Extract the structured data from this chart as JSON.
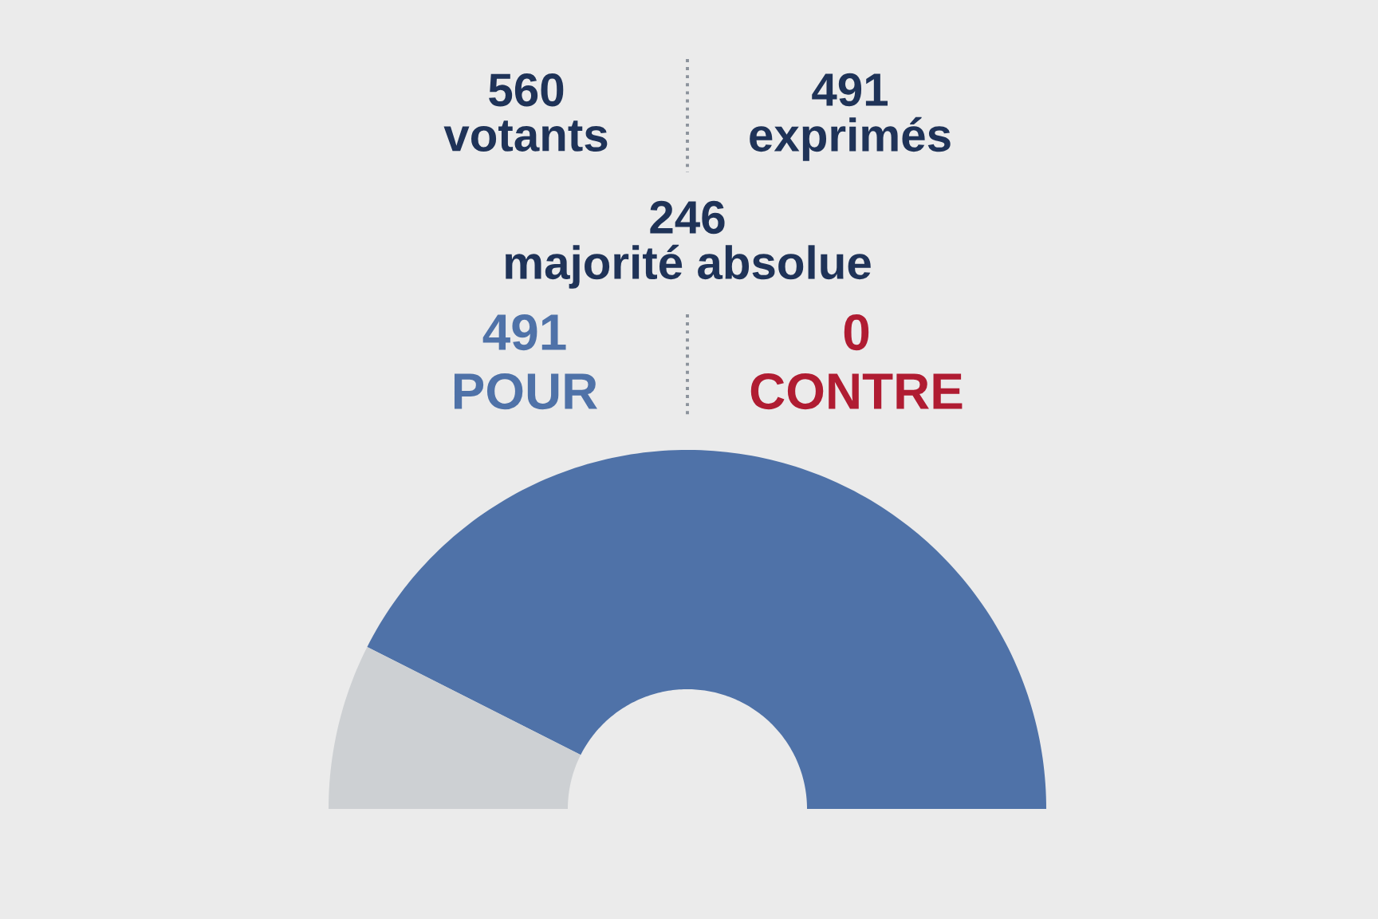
{
  "chart_data": {
    "type": "donut",
    "categories": [
      "POUR",
      "CONTRE",
      null
    ],
    "values": [
      491,
      0,
      86
    ],
    "colors": [
      "#4f72a8",
      "#b01c32",
      "#cdd0d3"
    ],
    "value_labels": [
      "491",
      "0",
      null
    ],
    "annotations": [
      "560\nvotants",
      "491\nexprimés",
      "246\nmajorité absolue"
    ]
  }
}
